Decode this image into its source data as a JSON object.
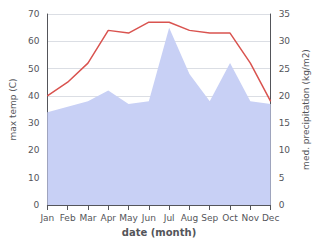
{
  "chart_data": {
    "type": "line",
    "categories": [
      "Jan",
      "Feb",
      "Mar",
      "Apr",
      "May",
      "Jun",
      "Jul",
      "Aug",
      "Sep",
      "Oct",
      "Nov",
      "Dec"
    ],
    "series": [
      {
        "type": "area",
        "color": "#c8d0f5",
        "values": [
          34,
          36,
          38,
          42,
          37,
          38,
          65,
          48,
          38,
          52,
          38,
          37
        ]
      },
      {
        "type": "line",
        "color": "#d9534f",
        "values": [
          40,
          45,
          52,
          64,
          63,
          67,
          67,
          64,
          63,
          63,
          52,
          38
        ]
      }
    ],
    "xlabel": "date (month)",
    "ylabel": "max temp (C)",
    "y2label": "med. precipitation (kg/m2)",
    "ylim": [
      0,
      70
    ],
    "yticks": [
      0,
      10,
      20,
      30,
      40,
      50,
      60,
      70
    ],
    "y2lim": [
      0,
      35
    ],
    "y2ticks": [
      0,
      5,
      10,
      15,
      20,
      25,
      30,
      35
    ],
    "grid": true
  }
}
